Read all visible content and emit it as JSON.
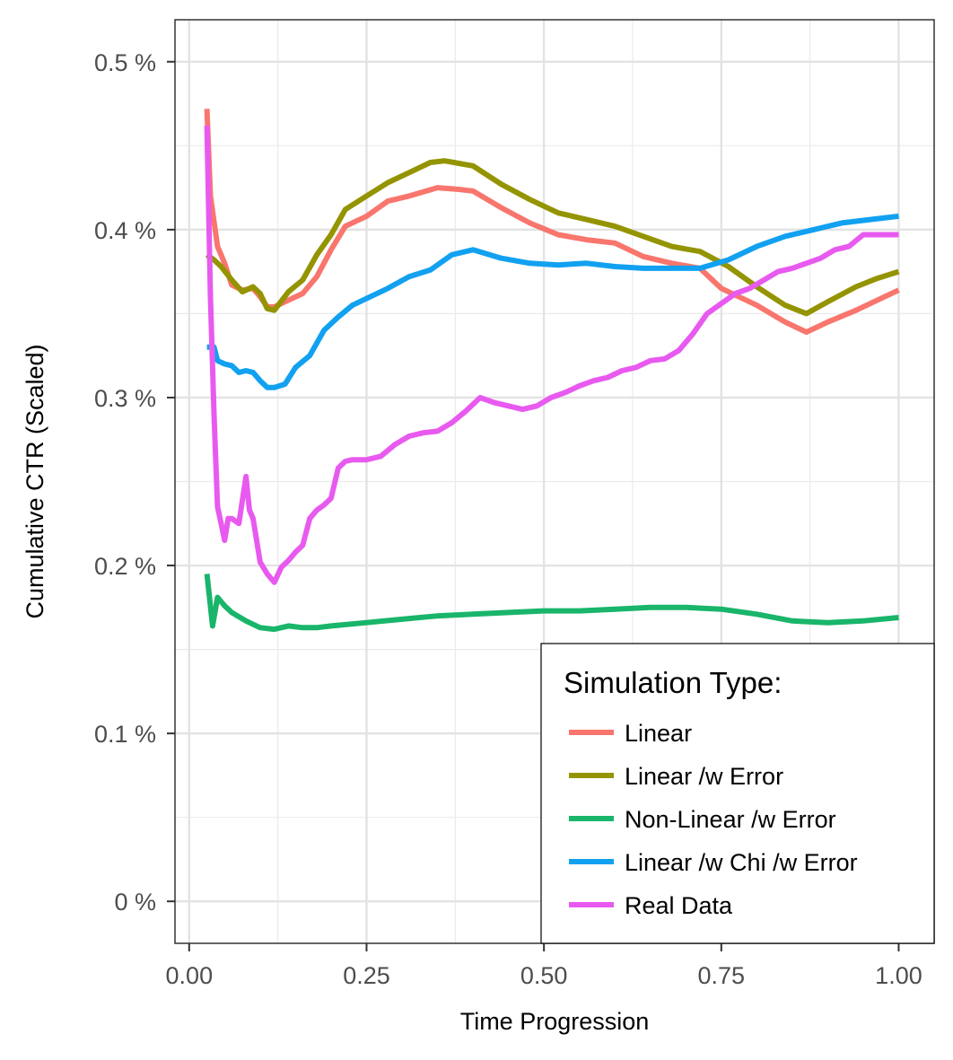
{
  "chart_data": {
    "type": "line",
    "title": "",
    "xlabel": "Time Progression",
    "ylabel": "Cumulative CTR (Scaled)",
    "xlim": [
      0.0,
      1.0
    ],
    "ylim": [
      0.0,
      0.5
    ],
    "x_ticks": [
      0.0,
      0.25,
      0.5,
      0.75,
      1.0
    ],
    "x_tick_labels": [
      "0.00",
      "0.25",
      "0.50",
      "0.75",
      "1.00"
    ],
    "y_ticks": [
      0.0,
      0.1,
      0.2,
      0.3,
      0.4,
      0.5
    ],
    "y_tick_labels": [
      "0 %",
      "0.1 %",
      "0.2 %",
      "0.3 %",
      "0.4 %",
      "0.5 %"
    ],
    "grid": true,
    "legend": {
      "title": "Simulation Type:",
      "position": "bottom-right"
    },
    "series": [
      {
        "name": "Linear",
        "color": "#F8766D",
        "points": [
          [
            0.025,
            0.472
          ],
          [
            0.03,
            0.42
          ],
          [
            0.04,
            0.39
          ],
          [
            0.05,
            0.38
          ],
          [
            0.06,
            0.367
          ],
          [
            0.075,
            0.364
          ],
          [
            0.09,
            0.365
          ],
          [
            0.1,
            0.36
          ],
          [
            0.11,
            0.354
          ],
          [
            0.12,
            0.354
          ],
          [
            0.14,
            0.358
          ],
          [
            0.16,
            0.362
          ],
          [
            0.18,
            0.372
          ],
          [
            0.2,
            0.388
          ],
          [
            0.22,
            0.402
          ],
          [
            0.25,
            0.408
          ],
          [
            0.28,
            0.417
          ],
          [
            0.31,
            0.42
          ],
          [
            0.35,
            0.425
          ],
          [
            0.38,
            0.424
          ],
          [
            0.4,
            0.423
          ],
          [
            0.44,
            0.413
          ],
          [
            0.48,
            0.404
          ],
          [
            0.52,
            0.397
          ],
          [
            0.56,
            0.394
          ],
          [
            0.6,
            0.392
          ],
          [
            0.64,
            0.384
          ],
          [
            0.68,
            0.38
          ],
          [
            0.72,
            0.377
          ],
          [
            0.75,
            0.365
          ],
          [
            0.8,
            0.355
          ],
          [
            0.84,
            0.345
          ],
          [
            0.87,
            0.339
          ],
          [
            0.9,
            0.345
          ],
          [
            0.94,
            0.352
          ],
          [
            0.97,
            0.358
          ],
          [
            1.0,
            0.364
          ]
        ]
      },
      {
        "name": "Linear /w Error",
        "color": "#949400",
        "points": [
          [
            0.025,
            0.385
          ],
          [
            0.035,
            0.382
          ],
          [
            0.045,
            0.378
          ],
          [
            0.06,
            0.37
          ],
          [
            0.075,
            0.363
          ],
          [
            0.09,
            0.366
          ],
          [
            0.1,
            0.362
          ],
          [
            0.11,
            0.353
          ],
          [
            0.12,
            0.352
          ],
          [
            0.14,
            0.363
          ],
          [
            0.16,
            0.37
          ],
          [
            0.18,
            0.385
          ],
          [
            0.2,
            0.397
          ],
          [
            0.22,
            0.412
          ],
          [
            0.25,
            0.42
          ],
          [
            0.28,
            0.428
          ],
          [
            0.31,
            0.434
          ],
          [
            0.34,
            0.44
          ],
          [
            0.36,
            0.441
          ],
          [
            0.4,
            0.438
          ],
          [
            0.44,
            0.427
          ],
          [
            0.48,
            0.418
          ],
          [
            0.52,
            0.41
          ],
          [
            0.56,
            0.406
          ],
          [
            0.6,
            0.402
          ],
          [
            0.64,
            0.396
          ],
          [
            0.68,
            0.39
          ],
          [
            0.72,
            0.387
          ],
          [
            0.76,
            0.378
          ],
          [
            0.8,
            0.366
          ],
          [
            0.84,
            0.355
          ],
          [
            0.87,
            0.35
          ],
          [
            0.9,
            0.357
          ],
          [
            0.94,
            0.366
          ],
          [
            0.97,
            0.371
          ],
          [
            1.0,
            0.375
          ]
        ]
      },
      {
        "name": "Non-Linear /w Error",
        "color": "#19B56A",
        "points": [
          [
            0.025,
            0.195
          ],
          [
            0.033,
            0.164
          ],
          [
            0.04,
            0.181
          ],
          [
            0.05,
            0.176
          ],
          [
            0.06,
            0.172
          ],
          [
            0.08,
            0.167
          ],
          [
            0.1,
            0.163
          ],
          [
            0.12,
            0.162
          ],
          [
            0.14,
            0.164
          ],
          [
            0.16,
            0.163
          ],
          [
            0.18,
            0.163
          ],
          [
            0.2,
            0.164
          ],
          [
            0.25,
            0.166
          ],
          [
            0.3,
            0.168
          ],
          [
            0.35,
            0.17
          ],
          [
            0.4,
            0.171
          ],
          [
            0.45,
            0.172
          ],
          [
            0.5,
            0.173
          ],
          [
            0.55,
            0.173
          ],
          [
            0.6,
            0.174
          ],
          [
            0.65,
            0.175
          ],
          [
            0.7,
            0.175
          ],
          [
            0.75,
            0.174
          ],
          [
            0.8,
            0.171
          ],
          [
            0.85,
            0.167
          ],
          [
            0.9,
            0.166
          ],
          [
            0.95,
            0.167
          ],
          [
            1.0,
            0.169
          ]
        ]
      },
      {
        "name": "Linear /w Chi /w Error",
        "color": "#12A1F0",
        "points": [
          [
            0.025,
            0.33
          ],
          [
            0.035,
            0.33
          ],
          [
            0.04,
            0.322
          ],
          [
            0.05,
            0.32
          ],
          [
            0.06,
            0.319
          ],
          [
            0.07,
            0.315
          ],
          [
            0.08,
            0.316
          ],
          [
            0.09,
            0.315
          ],
          [
            0.1,
            0.31
          ],
          [
            0.11,
            0.306
          ],
          [
            0.12,
            0.306
          ],
          [
            0.135,
            0.308
          ],
          [
            0.15,
            0.318
          ],
          [
            0.17,
            0.325
          ],
          [
            0.19,
            0.34
          ],
          [
            0.21,
            0.348
          ],
          [
            0.23,
            0.355
          ],
          [
            0.25,
            0.359
          ],
          [
            0.28,
            0.365
          ],
          [
            0.31,
            0.372
          ],
          [
            0.34,
            0.376
          ],
          [
            0.37,
            0.385
          ],
          [
            0.4,
            0.388
          ],
          [
            0.44,
            0.383
          ],
          [
            0.48,
            0.38
          ],
          [
            0.52,
            0.379
          ],
          [
            0.56,
            0.38
          ],
          [
            0.6,
            0.378
          ],
          [
            0.64,
            0.377
          ],
          [
            0.68,
            0.377
          ],
          [
            0.72,
            0.377
          ],
          [
            0.76,
            0.382
          ],
          [
            0.8,
            0.39
          ],
          [
            0.84,
            0.396
          ],
          [
            0.88,
            0.4
          ],
          [
            0.92,
            0.404
          ],
          [
            0.96,
            0.406
          ],
          [
            1.0,
            0.408
          ]
        ]
      },
      {
        "name": "Real Data",
        "color": "#E85AEF",
        "points": [
          [
            0.025,
            0.462
          ],
          [
            0.03,
            0.36
          ],
          [
            0.035,
            0.29
          ],
          [
            0.04,
            0.235
          ],
          [
            0.045,
            0.225
          ],
          [
            0.05,
            0.215
          ],
          [
            0.055,
            0.228
          ],
          [
            0.06,
            0.228
          ],
          [
            0.07,
            0.225
          ],
          [
            0.08,
            0.253
          ],
          [
            0.085,
            0.233
          ],
          [
            0.09,
            0.228
          ],
          [
            0.1,
            0.202
          ],
          [
            0.11,
            0.195
          ],
          [
            0.12,
            0.19
          ],
          [
            0.13,
            0.199
          ],
          [
            0.14,
            0.203
          ],
          [
            0.15,
            0.208
          ],
          [
            0.16,
            0.212
          ],
          [
            0.17,
            0.228
          ],
          [
            0.18,
            0.233
          ],
          [
            0.19,
            0.236
          ],
          [
            0.2,
            0.24
          ],
          [
            0.21,
            0.258
          ],
          [
            0.22,
            0.262
          ],
          [
            0.23,
            0.263
          ],
          [
            0.25,
            0.263
          ],
          [
            0.27,
            0.265
          ],
          [
            0.29,
            0.272
          ],
          [
            0.31,
            0.277
          ],
          [
            0.33,
            0.279
          ],
          [
            0.35,
            0.28
          ],
          [
            0.37,
            0.285
          ],
          [
            0.39,
            0.292
          ],
          [
            0.41,
            0.3
          ],
          [
            0.43,
            0.297
          ],
          [
            0.45,
            0.295
          ],
          [
            0.47,
            0.293
          ],
          [
            0.49,
            0.295
          ],
          [
            0.51,
            0.3
          ],
          [
            0.53,
            0.303
          ],
          [
            0.55,
            0.307
          ],
          [
            0.57,
            0.31
          ],
          [
            0.59,
            0.312
          ],
          [
            0.61,
            0.316
          ],
          [
            0.63,
            0.318
          ],
          [
            0.65,
            0.322
          ],
          [
            0.67,
            0.323
          ],
          [
            0.69,
            0.328
          ],
          [
            0.71,
            0.338
          ],
          [
            0.73,
            0.35
          ],
          [
            0.75,
            0.356
          ],
          [
            0.77,
            0.362
          ],
          [
            0.79,
            0.365
          ],
          [
            0.81,
            0.37
          ],
          [
            0.83,
            0.375
          ],
          [
            0.85,
            0.377
          ],
          [
            0.87,
            0.38
          ],
          [
            0.89,
            0.383
          ],
          [
            0.91,
            0.388
          ],
          [
            0.93,
            0.39
          ],
          [
            0.95,
            0.397
          ],
          [
            0.97,
            0.397
          ],
          [
            1.0,
            0.397
          ]
        ]
      }
    ]
  }
}
